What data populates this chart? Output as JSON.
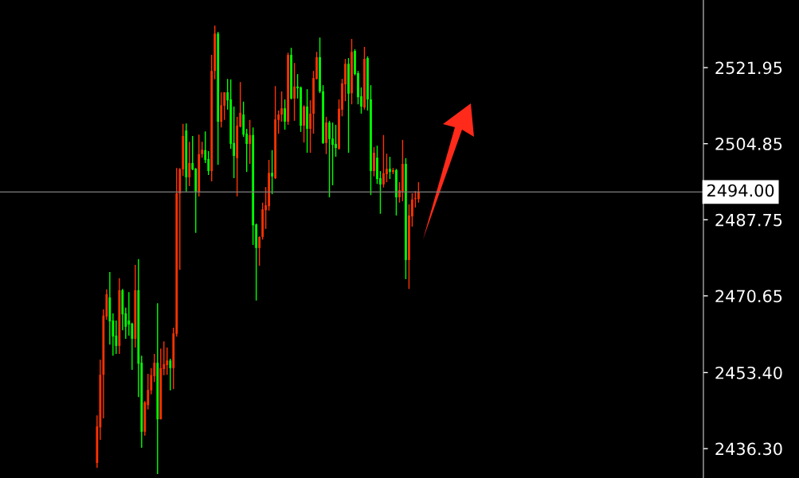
{
  "chart_data": {
    "type": "candlestick",
    "categories": [
      null,
      null,
      null,
      null,
      null,
      null,
      null,
      null,
      null,
      null,
      null,
      null,
      null,
      null,
      null,
      null,
      null,
      null,
      null,
      null,
      null,
      null,
      null,
      null,
      null,
      null,
      null,
      null,
      null,
      null,
      null,
      null,
      null,
      null,
      null,
      null,
      null,
      null,
      null,
      null,
      null,
      null,
      null,
      null,
      null,
      null,
      null,
      null,
      null,
      null,
      null,
      null,
      null,
      null,
      null,
      null,
      null,
      null,
      null,
      null,
      null,
      null,
      null,
      null,
      null,
      null,
      null,
      null,
      null,
      null,
      null,
      null,
      null,
      null,
      null,
      null,
      null,
      null,
      null,
      null,
      null,
      null,
      null,
      null,
      null,
      null,
      null,
      null,
      null,
      null,
      null,
      null,
      null,
      null,
      null,
      null,
      null,
      null,
      null,
      null,
      null,
      null,
      null,
      null,
      null,
      null,
      null,
      null,
      null,
      null,
      null,
      null,
      null,
      null,
      null,
      null,
      null,
      null,
      null,
      null,
      null,
      null,
      null,
      null,
      null,
      null,
      null,
      null,
      null,
      null,
      null,
      null,
      null,
      null,
      null,
      null,
      null,
      null,
      null,
      null,
      null,
      null,
      null,
      null,
      null,
      null,
      null,
      null,
      null,
      null,
      null,
      null,
      null,
      null,
      null,
      null,
      null,
      null,
      null,
      null,
      null,
      null,
      null,
      null,
      null,
      null,
      null,
      null,
      null,
      null,
      null,
      null,
      null,
      null,
      null,
      null,
      null,
      null,
      null,
      null,
      null,
      null,
      null,
      null,
      null,
      null,
      null,
      null,
      null,
      null,
      null,
      null,
      null,
      null,
      null,
      null,
      null,
      null,
      null,
      null,
      null,
      null,
      null,
      null,
      null,
      null,
      null,
      null,
      null,
      null,
      null,
      null,
      null,
      null,
      null,
      null,
      null,
      null,
      null,
      null,
      null
    ],
    "ohlc": [
      null,
      null,
      null,
      null,
      null,
      null,
      null,
      null,
      null,
      null,
      null,
      null,
      null,
      null,
      null,
      null,
      null,
      null,
      null,
      null,
      null,
      null,
      null,
      null,
      null,
      null,
      null,
      null,
      null,
      null,
      [
        2433.1,
        2443.8,
        2432.0,
        2441.3
      ],
      [
        2441.1,
        2456.3,
        2438.3,
        2452.9
      ],
      [
        2452.9,
        2467.6,
        2443.1,
        2466.2
      ],
      [
        2466.0,
        2472.1,
        2465.3,
        2471.0
      ],
      [
        2470.3,
        2476.0,
        2459.7,
        2464.9
      ],
      [
        2465.1,
        2466.7,
        2457.2,
        2461.5
      ],
      [
        2461.7,
        2465.1,
        2457.6,
        2459.4
      ],
      [
        2459.4,
        2474.6,
        2457.6,
        2471.9
      ],
      [
        2471.9,
        2472.2,
        2462.9,
        2466.5
      ],
      [
        2466.7,
        2468.0,
        2461.0,
        2463.7
      ],
      [
        2465.1,
        2471.5,
        2461.7,
        2464.2
      ],
      [
        2464.4,
        2464.6,
        2454.0,
        2461.0
      ],
      [
        2461.0,
        2477.6,
        2459.0,
        2471.9
      ],
      [
        2471.9,
        2478.9,
        2447.9,
        2455.4
      ],
      [
        2455.6,
        2457.2,
        2436.5,
        2440.1
      ],
      [
        2440.1,
        2447.0,
        2439.2,
        2446.7
      ],
      [
        2446.1,
        2453.1,
        2445.1,
        2449.5
      ],
      [
        2449.4,
        2454.4,
        2448.5,
        2452.8
      ],
      [
        2452.6,
        2457.6,
        2451.3,
        2455.6
      ],
      [
        2455.6,
        2469.0,
        2430.6,
        2442.9
      ],
      [
        2442.9,
        2458.8,
        2442.9,
        2454.4
      ],
      [
        2454.2,
        2460.4,
        2452.8,
        2455.3
      ],
      [
        2455.1,
        2459.0,
        2452.9,
        2456.1
      ],
      [
        2456.1,
        2456.5,
        2449.4,
        2454.4
      ],
      [
        2454.4,
        2463.5,
        2449.7,
        2462.2
      ],
      [
        2462.1,
        2499.4,
        2461.5,
        2493.7
      ],
      [
        2493.7,
        2499.4,
        2476.5,
        2499.1
      ],
      [
        2499.1,
        2509.3,
        2497.6,
        2506.6
      ],
      [
        2507.8,
        2509.4,
        2494.1,
        2497.3
      ],
      [
        2497.3,
        2505.3,
        2495.3,
        2500.5
      ],
      [
        2500.5,
        2506.6,
        2498.9,
        2499.1
      ],
      [
        2499.2,
        2499.4,
        2484.8,
        2494.1
      ],
      [
        2493.9,
        2506.9,
        2493.0,
        2502.5
      ],
      [
        2502.5,
        2505.3,
        2501.7,
        2503.5
      ],
      [
        2503.4,
        2507.6,
        2500.5,
        2501.2
      ],
      [
        2501.4,
        2503.2,
        2497.8,
        2498.7
      ],
      [
        2498.7,
        2524.8,
        2496.4,
        2521.2
      ],
      [
        2521.2,
        2531.4,
        2519.3,
        2529.6
      ],
      [
        2529.6,
        2530.0,
        2500.1,
        2509.8
      ],
      [
        2509.8,
        2516.4,
        2508.5,
        2513.5
      ],
      [
        2513.4,
        2516.4,
        2510.2,
        2516.4
      ],
      [
        2516.4,
        2519.4,
        2512.5,
        2514.6
      ],
      [
        2514.8,
        2519.3,
        2503.7,
        2504.8
      ],
      [
        2505.0,
        2513.2,
        2497.1,
        2502.1
      ],
      [
        2501.6,
        2510.9,
        2493.0,
        2508.9
      ],
      [
        2508.7,
        2518.7,
        2508.5,
        2511.8
      ],
      [
        2511.4,
        2514.3,
        2506.4,
        2506.9
      ],
      [
        2507.1,
        2508.2,
        2498.5,
        2504.8
      ],
      [
        2504.8,
        2510.2,
        2500.3,
        2506.8
      ],
      [
        2506.8,
        2508.5,
        2482.1,
        2486.5
      ],
      [
        2486.7,
        2486.9,
        2469.6,
        2481.4
      ],
      [
        2481.4,
        2484.0,
        2477.4,
        2483.9
      ],
      [
        2483.9,
        2491.6,
        2483.3,
        2490.1
      ],
      [
        2489.9,
        2495.1,
        2485.7,
        2491.0
      ],
      [
        2490.8,
        2501.2,
        2489.8,
        2498.3
      ],
      [
        2498.3,
        2503.4,
        2493.5,
        2497.5
      ],
      [
        2497.1,
        2517.8,
        2496.9,
        2510.3
      ],
      [
        2510.2,
        2512.3,
        2507.1,
        2511.4
      ],
      [
        2511.4,
        2516.6,
        2509.8,
        2512.8
      ],
      [
        2512.8,
        2514.8,
        2508.0,
        2509.8
      ],
      [
        2509.8,
        2525.3,
        2509.1,
        2524.8
      ],
      [
        2524.8,
        2526.4,
        2514.8,
        2515.0
      ],
      [
        2515.0,
        2523.0,
        2510.0,
        2517.7
      ],
      [
        2517.7,
        2520.5,
        2515.0,
        2517.3
      ],
      [
        2517.5,
        2517.7,
        2507.5,
        2508.9
      ],
      [
        2508.9,
        2513.5,
        2505.1,
        2513.2
      ],
      [
        2513.2,
        2517.1,
        2502.8,
        2508.2
      ],
      [
        2508.2,
        2514.6,
        2502.8,
        2511.6
      ],
      [
        2511.6,
        2521.2,
        2507.1,
        2519.6
      ],
      [
        2519.4,
        2525.5,
        2519.3,
        2524.3
      ],
      [
        2524.3,
        2528.7,
        2516.2,
        2516.6
      ],
      [
        2516.6,
        2518.0,
        2504.8,
        2505.0
      ],
      [
        2505.0,
        2510.9,
        2502.5,
        2509.6
      ],
      [
        2509.6,
        2510.0,
        2492.8,
        2505.9
      ],
      [
        2506.0,
        2509.6,
        2495.5,
        2504.6
      ],
      [
        2504.8,
        2509.1,
        2501.9,
        2503.9
      ],
      [
        2503.7,
        2514.8,
        2503.5,
        2512.7
      ],
      [
        2512.5,
        2519.4,
        2511.0,
        2518.4
      ],
      [
        2518.2,
        2523.9,
        2514.4,
        2522.8
      ],
      [
        2522.8,
        2524.1,
        2502.8,
        2516.1
      ],
      [
        2516.2,
        2528.4,
        2513.7,
        2525.5
      ],
      [
        2525.7,
        2526.1,
        2520.2,
        2520.5
      ],
      [
        2520.7,
        2521.2,
        2513.7,
        2515.3
      ],
      [
        2515.5,
        2517.5,
        2511.6,
        2513.2
      ],
      [
        2513.0,
        2526.6,
        2512.5,
        2523.9
      ],
      [
        2524.1,
        2524.5,
        2512.3,
        2514.8
      ],
      [
        2514.8,
        2518.0,
        2493.3,
        2498.7
      ],
      [
        2498.7,
        2504.1,
        2497.5,
        2502.8
      ],
      [
        2501.7,
        2504.4,
        2495.8,
        2496.9
      ],
      [
        2497.1,
        2498.7,
        2489.1,
        2495.7
      ],
      [
        2495.7,
        2506.8,
        2495.0,
        2498.2
      ],
      [
        2498.0,
        2502.6,
        2496.2,
        2499.2
      ],
      [
        2499.2,
        2501.9,
        2496.9,
        2498.5
      ],
      [
        2498.5,
        2499.4,
        2498.0,
        2498.9
      ],
      [
        2498.9,
        2499.2,
        2488.7,
        2492.8
      ],
      [
        2492.8,
        2496.2,
        2491.6,
        2494.4
      ],
      [
        2494.1,
        2505.7,
        2491.9,
        2500.3
      ],
      [
        2500.3,
        2501.6,
        2474.4,
        2478.7
      ],
      [
        2478.7,
        2491.2,
        2472.2,
        2488.7
      ],
      [
        2488.5,
        2493.7,
        2486.2,
        2492.3
      ],
      [
        2492.4,
        2494.2,
        2490.5,
        2492.6
      ],
      [
        2492.4,
        2496.2,
        2491.6,
        2494.0
      ],
      null,
      null,
      null,
      null,
      null,
      null,
      null,
      null,
      null,
      null,
      null,
      null,
      null,
      null,
      null,
      null,
      null,
      null,
      null,
      null,
      null,
      null,
      null,
      null,
      null,
      null,
      null,
      null,
      null,
      null,
      null,
      null,
      null,
      null,
      null,
      null,
      null,
      null,
      null,
      null,
      null,
      null,
      null,
      null,
      null,
      null,
      null,
      null,
      null,
      null,
      null,
      null,
      null,
      null,
      null,
      null,
      null,
      null,
      null,
      null,
      null,
      null,
      null,
      null,
      null,
      null,
      null,
      null,
      null,
      null,
      null,
      null,
      null,
      null,
      null,
      null,
      null,
      null,
      null,
      null,
      null,
      null,
      null,
      null,
      null,
      null,
      null,
      null,
      null
    ],
    "colors": [
      null,
      null,
      null,
      null,
      null,
      null,
      null,
      null,
      null,
      null,
      null,
      null,
      null,
      null,
      null,
      null,
      null,
      null,
      null,
      null,
      null,
      null,
      null,
      null,
      null,
      null,
      null,
      null,
      null,
      null,
      "#ff3300",
      "#ff3300",
      "#ff3300",
      "#ff3300",
      "#00ff00",
      "#00ff00",
      "#00ff00",
      "#ff3300",
      "#00ff00",
      "#00ff00",
      "#00ff00",
      "#00ff00",
      "#ff3300",
      "#00ff00",
      "#00ff00",
      "#ff3300",
      "#ff3300",
      "#ff3300",
      "#ff3300",
      "#00ff00",
      "#ff3300",
      "#ff3300",
      "#ff3300",
      "#00ff00",
      "#ff3300",
      "#ff3300",
      "#ff3300",
      "#ff3300",
      "#00ff00",
      "#ff3300",
      "#00ff00",
      "#00ff00",
      "#ff3300",
      "#ff3300",
      "#00ff00",
      "#00ff00",
      "#ff3300",
      "#ff3300",
      "#00ff00",
      "#ff3300",
      "#ff3300",
      "#00ff00",
      "#00ff00",
      "#00ff00",
      "#ff3300",
      "#ff3300",
      "#00ff00",
      "#00ff00",
      "#ff3300",
      "#00ff00",
      "#00ff00",
      "#ff3300",
      "#ff3300",
      "#ff3300",
      "#ff3300",
      "#00ff00",
      "#ff3300",
      "#ff3300",
      "#ff3300",
      "#00ff00",
      "#ff3300",
      "#00ff00",
      "#ff3300",
      "#00ff00",
      "#00ff00",
      "#ff3300",
      "#00ff00",
      "#ff3300",
      "#ff3300",
      "#ff3300",
      "#00ff00",
      "#00ff00",
      "#ff3300",
      "#00ff00",
      "#00ff00",
      "#00ff00",
      "#ff3300",
      "#ff3300",
      "#ff3300",
      "#00ff00",
      "#ff3300",
      "#00ff00",
      "#00ff00",
      "#00ff00",
      "#ff3300",
      "#00ff00",
      "#00ff00",
      "#ff3300",
      "#00ff00",
      "#00ff00",
      "#ff3300",
      "#ff3300",
      "#00ff00",
      "#ff3300",
      "#00ff00",
      "#ff3300",
      "#ff3300",
      "#00ff00",
      "#ff3300",
      "#ff3300",
      "#ff3300",
      "#ff3300",
      null,
      null,
      null,
      null,
      null,
      null,
      null,
      null,
      null,
      null,
      null,
      null,
      null,
      null,
      null,
      null,
      null,
      null,
      null,
      null,
      null,
      null,
      null,
      null,
      null,
      null,
      null,
      null,
      null,
      null,
      null,
      null,
      null,
      null,
      null,
      null,
      null,
      null,
      null,
      null,
      null,
      null,
      null,
      null,
      null,
      null,
      null,
      null,
      null,
      null,
      null,
      null,
      null,
      null,
      null,
      null,
      null,
      null,
      null,
      null,
      null,
      null,
      null,
      null,
      null,
      null,
      null,
      null,
      null,
      null,
      null,
      null,
      null,
      null,
      null,
      null,
      null,
      null,
      null,
      null,
      null,
      null,
      null,
      null,
      null,
      null,
      null,
      null,
      null
    ],
    "ylim": [
      2429.7,
      2537.15
    ],
    "yticks": [
      2521.95,
      2504.85,
      2487.75,
      2470.65,
      {
        "value": 2453.4,
        "label": "2453.40"
      },
      {
        "value": 2436.3,
        "label": "2436.30"
      }
    ],
    "tick_labels": "y",
    "grid": false,
    "ref_lines": [
      {
        "axis": "y",
        "value": 2494.0,
        "label": "2494.00",
        "color": "#808080"
      }
    ]
  }
}
